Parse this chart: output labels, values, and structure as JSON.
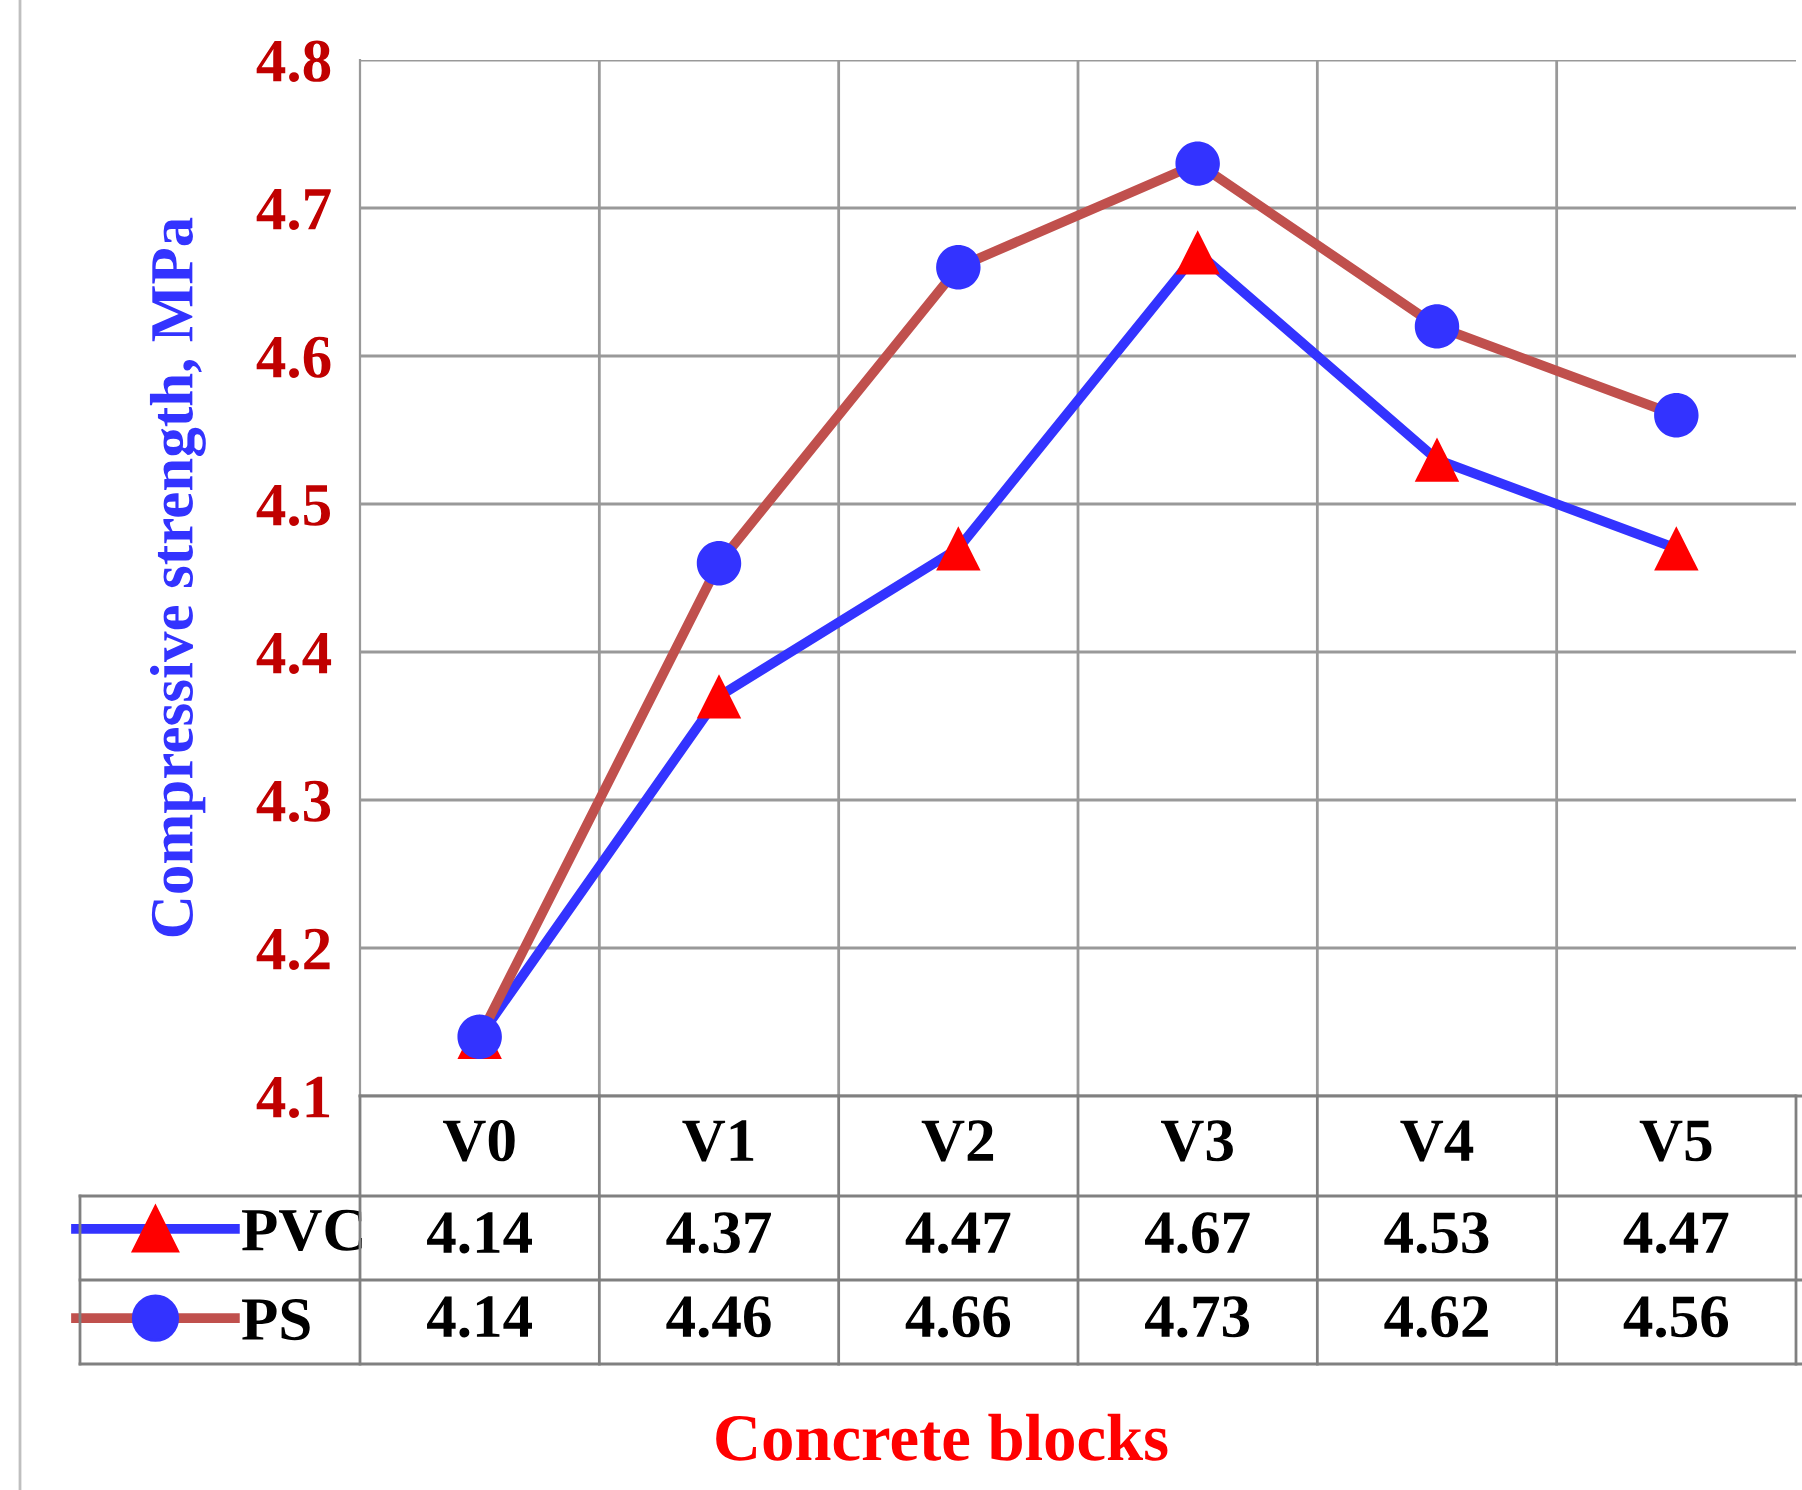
{
  "chart_data": {
    "type": "line",
    "xlabel": "Concrete blocks",
    "ylabel": "Compressive strength, MPa",
    "categories": [
      "V0",
      "V1",
      "V2",
      "V3",
      "V4",
      "V5"
    ],
    "series": [
      {
        "name": "PVC",
        "color": "#3333ff",
        "marker": "triangle",
        "colors": [
          "#ff0000",
          "#ff0000",
          "#ff0000",
          "#ff0000",
          "#ff0000",
          "#ff0000"
        ],
        "values": [
          4.14,
          4.37,
          4.47,
          4.67,
          4.53,
          4.47
        ]
      },
      {
        "name": "PS",
        "color": "#c0504d",
        "marker": "circle",
        "colors": [
          "#3333ff",
          "#3333ff",
          "#3333ff",
          "#3333ff",
          "#3333ff",
          "#3333ff"
        ],
        "values": [
          4.14,
          4.46,
          4.66,
          4.73,
          4.62,
          4.56
        ]
      }
    ],
    "legend": "bottom left",
    "ylim": [
      4.1,
      4.8
    ],
    "yticks": [
      4.1,
      4.2,
      4.3,
      4.4,
      4.5,
      4.6,
      4.7,
      4.8
    ],
    "grid": true,
    "data_labels": true,
    "line_style": "solid"
  }
}
